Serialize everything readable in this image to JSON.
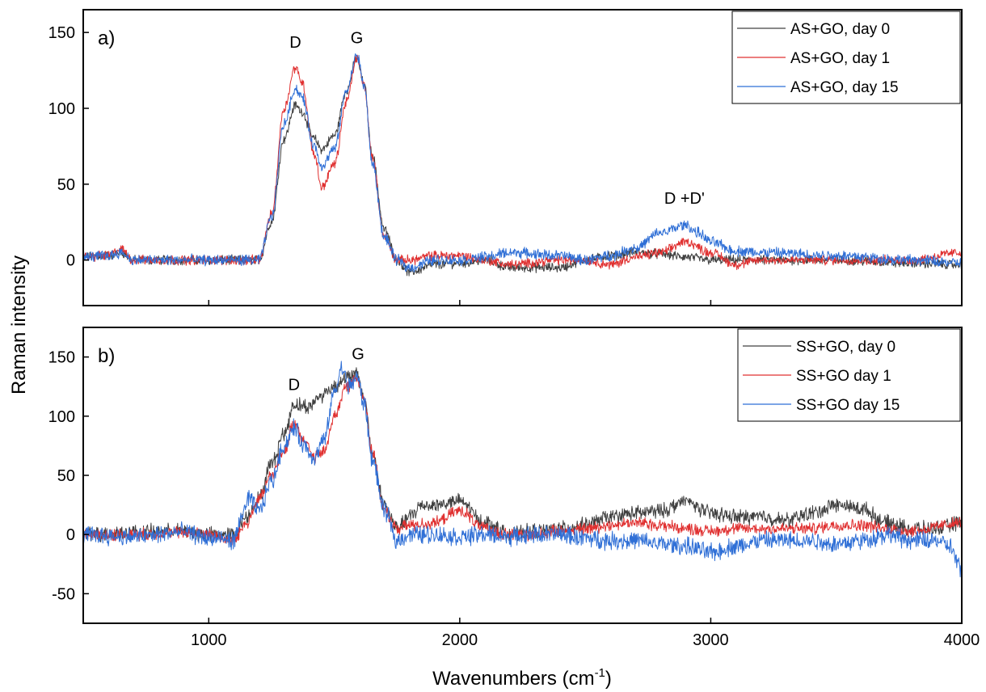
{
  "figure": {
    "ylabel": "Raman intensity",
    "xlabel_main": "Wavenumbers (cm",
    "xlabel_sup": "-1",
    "xlabel_close": ")"
  },
  "chart_data": [
    {
      "type": "line",
      "panel_label": "a)",
      "xlim": [
        500,
        4000
      ],
      "ylim": [
        -30,
        165
      ],
      "x_ticks": [
        1000,
        2000,
        3000,
        4000
      ],
      "y_ticks": [
        0,
        50,
        100,
        150
      ],
      "y_tick_labels": [
        "0",
        "50",
        "100",
        "150"
      ],
      "x_tick_labels_shown": false,
      "legend_position": "top-right",
      "annotations": [
        {
          "text": "D",
          "x": 1345,
          "y": 140
        },
        {
          "text": "G",
          "x": 1590,
          "y": 143
        },
        {
          "text": "D +D'",
          "x": 2895,
          "y": 37
        }
      ],
      "series": [
        {
          "name": "AS+GO, day 0",
          "color": "#404040",
          "noise": 2.5,
          "points": [
            [
              500,
              2
            ],
            [
              600,
              3
            ],
            [
              650,
              5
            ],
            [
              700,
              0
            ],
            [
              1000,
              0
            ],
            [
              1200,
              0
            ],
            [
              1250,
              25
            ],
            [
              1300,
              80
            ],
            [
              1345,
              102
            ],
            [
              1370,
              98
            ],
            [
              1420,
              80
            ],
            [
              1450,
              73
            ],
            [
              1500,
              82
            ],
            [
              1550,
              112
            ],
            [
              1590,
              133
            ],
            [
              1620,
              115
            ],
            [
              1650,
              70
            ],
            [
              1700,
              20
            ],
            [
              1750,
              0
            ],
            [
              1800,
              -8
            ],
            [
              1900,
              -3
            ],
            [
              2000,
              -2
            ],
            [
              2100,
              0
            ],
            [
              2200,
              -5
            ],
            [
              2400,
              -5
            ],
            [
              2500,
              0
            ],
            [
              2600,
              3
            ],
            [
              2700,
              5
            ],
            [
              2800,
              4
            ],
            [
              2900,
              2
            ],
            [
              3000,
              0
            ],
            [
              3200,
              0
            ],
            [
              3500,
              0
            ],
            [
              3800,
              -2
            ],
            [
              4000,
              -3
            ]
          ]
        },
        {
          "name": "AS+GO, day 1",
          "color": "#e03030",
          "noise": 2.5,
          "points": [
            [
              500,
              2
            ],
            [
              600,
              3
            ],
            [
              650,
              7
            ],
            [
              700,
              0
            ],
            [
              1000,
              0
            ],
            [
              1200,
              0
            ],
            [
              1250,
              30
            ],
            [
              1300,
              100
            ],
            [
              1345,
              127
            ],
            [
              1370,
              118
            ],
            [
              1420,
              70
            ],
            [
              1450,
              48
            ],
            [
              1500,
              63
            ],
            [
              1550,
              105
            ],
            [
              1590,
              133
            ],
            [
              1620,
              115
            ],
            [
              1650,
              68
            ],
            [
              1700,
              15
            ],
            [
              1750,
              0
            ],
            [
              1800,
              0
            ],
            [
              1900,
              3
            ],
            [
              2000,
              3
            ],
            [
              2100,
              0
            ],
            [
              2200,
              -3
            ],
            [
              2400,
              0
            ],
            [
              2500,
              0
            ],
            [
              2600,
              -3
            ],
            [
              2700,
              2
            ],
            [
              2800,
              5
            ],
            [
              2900,
              12
            ],
            [
              3000,
              5
            ],
            [
              3100,
              -3
            ],
            [
              3200,
              0
            ],
            [
              3500,
              0
            ],
            [
              3800,
              0
            ],
            [
              4000,
              5
            ]
          ]
        },
        {
          "name": "AS+GO, day 15",
          "color": "#2f6fd6",
          "noise": 2.8,
          "points": [
            [
              500,
              2
            ],
            [
              600,
              3
            ],
            [
              650,
              5
            ],
            [
              700,
              0
            ],
            [
              1000,
              0
            ],
            [
              1200,
              0
            ],
            [
              1250,
              28
            ],
            [
              1300,
              90
            ],
            [
              1345,
              113
            ],
            [
              1370,
              108
            ],
            [
              1420,
              75
            ],
            [
              1450,
              62
            ],
            [
              1500,
              73
            ],
            [
              1550,
              112
            ],
            [
              1590,
              135
            ],
            [
              1620,
              115
            ],
            [
              1650,
              65
            ],
            [
              1700,
              15
            ],
            [
              1750,
              0
            ],
            [
              1800,
              -5
            ],
            [
              1900,
              0
            ],
            [
              2000,
              0
            ],
            [
              2100,
              2
            ],
            [
              2200,
              5
            ],
            [
              2400,
              3
            ],
            [
              2500,
              0
            ],
            [
              2600,
              3
            ],
            [
              2700,
              8
            ],
            [
              2800,
              18
            ],
            [
              2900,
              23
            ],
            [
              2950,
              18
            ],
            [
              3000,
              12
            ],
            [
              3100,
              6
            ],
            [
              3200,
              5
            ],
            [
              3500,
              3
            ],
            [
              3800,
              0
            ],
            [
              4000,
              -2
            ]
          ]
        }
      ]
    },
    {
      "type": "line",
      "panel_label": "b)",
      "xlim": [
        500,
        4000
      ],
      "ylim": [
        -75,
        175
      ],
      "x_ticks": [
        1000,
        2000,
        3000,
        4000
      ],
      "y_ticks": [
        -50,
        0,
        50,
        100,
        150
      ],
      "y_tick_labels": [
        "-50",
        "0",
        "50",
        "100",
        "150"
      ],
      "x_tick_labels": [
        "1000",
        "2000",
        "3000",
        "4000"
      ],
      "legend_position": "top-right",
      "annotations": [
        {
          "text": "D",
          "x": 1340,
          "y": 122
        },
        {
          "text": "G",
          "x": 1595,
          "y": 148
        }
      ],
      "series": [
        {
          "name": "SS+GO, day 0",
          "color": "#404040",
          "noise": 5,
          "points": [
            [
              500,
              0
            ],
            [
              700,
              2
            ],
            [
              900,
              3
            ],
            [
              1000,
              0
            ],
            [
              1100,
              0
            ],
            [
              1150,
              15
            ],
            [
              1200,
              30
            ],
            [
              1250,
              60
            ],
            [
              1300,
              85
            ],
            [
              1340,
              110
            ],
            [
              1400,
              108
            ],
            [
              1450,
              118
            ],
            [
              1500,
              125
            ],
            [
              1540,
              132
            ],
            [
              1590,
              135
            ],
            [
              1620,
              115
            ],
            [
              1650,
              70
            ],
            [
              1700,
              25
            ],
            [
              1750,
              5
            ],
            [
              1800,
              15
            ],
            [
              1850,
              25
            ],
            [
              1900,
              25
            ],
            [
              2000,
              28
            ],
            [
              2100,
              10
            ],
            [
              2200,
              0
            ],
            [
              2300,
              3
            ],
            [
              2400,
              5
            ],
            [
              2500,
              8
            ],
            [
              2600,
              15
            ],
            [
              2700,
              18
            ],
            [
              2800,
              20
            ],
            [
              2900,
              28
            ],
            [
              3000,
              18
            ],
            [
              3100,
              15
            ],
            [
              3200,
              15
            ],
            [
              3300,
              12
            ],
            [
              3400,
              18
            ],
            [
              3500,
              25
            ],
            [
              3600,
              22
            ],
            [
              3700,
              10
            ],
            [
              3800,
              5
            ],
            [
              3900,
              5
            ],
            [
              4000,
              10
            ]
          ]
        },
        {
          "name": "SS+GO day 1",
          "color": "#e03030",
          "noise": 4,
          "points": [
            [
              500,
              0
            ],
            [
              700,
              0
            ],
            [
              900,
              2
            ],
            [
              1000,
              0
            ],
            [
              1100,
              -5
            ],
            [
              1150,
              10
            ],
            [
              1200,
              30
            ],
            [
              1250,
              50
            ],
            [
              1300,
              70
            ],
            [
              1340,
              95
            ],
            [
              1380,
              80
            ],
            [
              1420,
              65
            ],
            [
              1460,
              70
            ],
            [
              1500,
              100
            ],
            [
              1550,
              125
            ],
            [
              1590,
              132
            ],
            [
              1620,
              115
            ],
            [
              1650,
              70
            ],
            [
              1700,
              20
            ],
            [
              1750,
              5
            ],
            [
              1800,
              8
            ],
            [
              1900,
              10
            ],
            [
              2000,
              20
            ],
            [
              2100,
              5
            ],
            [
              2200,
              0
            ],
            [
              2300,
              0
            ],
            [
              2400,
              3
            ],
            [
              2500,
              5
            ],
            [
              2600,
              8
            ],
            [
              2700,
              10
            ],
            [
              2800,
              8
            ],
            [
              2900,
              5
            ],
            [
              3000,
              3
            ],
            [
              3100,
              5
            ],
            [
              3200,
              5
            ],
            [
              3400,
              5
            ],
            [
              3500,
              8
            ],
            [
              3600,
              8
            ],
            [
              3700,
              5
            ],
            [
              3800,
              3
            ],
            [
              4000,
              10
            ]
          ]
        },
        {
          "name": "SS+GO day 15",
          "color": "#2f6fd6",
          "noise": 6,
          "points": [
            [
              500,
              0
            ],
            [
              700,
              -2
            ],
            [
              900,
              2
            ],
            [
              1000,
              -3
            ],
            [
              1100,
              -5
            ],
            [
              1140,
              20
            ],
            [
              1160,
              30
            ],
            [
              1200,
              20
            ],
            [
              1250,
              45
            ],
            [
              1300,
              75
            ],
            [
              1340,
              90
            ],
            [
              1380,
              75
            ],
            [
              1420,
              65
            ],
            [
              1460,
              80
            ],
            [
              1500,
              120
            ],
            [
              1530,
              140
            ],
            [
              1560,
              125
            ],
            [
              1590,
              133
            ],
            [
              1620,
              110
            ],
            [
              1650,
              65
            ],
            [
              1700,
              20
            ],
            [
              1750,
              -5
            ],
            [
              1800,
              0
            ],
            [
              1900,
              0
            ],
            [
              2000,
              -2
            ],
            [
              2100,
              0
            ],
            [
              2200,
              -2
            ],
            [
              2300,
              0
            ],
            [
              2400,
              0
            ],
            [
              2500,
              -3
            ],
            [
              2600,
              -5
            ],
            [
              2700,
              -5
            ],
            [
              2800,
              -8
            ],
            [
              2900,
              -10
            ],
            [
              3000,
              -15
            ],
            [
              3100,
              -10
            ],
            [
              3200,
              -5
            ],
            [
              3300,
              -5
            ],
            [
              3400,
              -5
            ],
            [
              3500,
              -8
            ],
            [
              3600,
              -5
            ],
            [
              3700,
              0
            ],
            [
              3800,
              -5
            ],
            [
              3900,
              -5
            ],
            [
              3950,
              -10
            ],
            [
              4000,
              -30
            ]
          ]
        }
      ]
    }
  ]
}
